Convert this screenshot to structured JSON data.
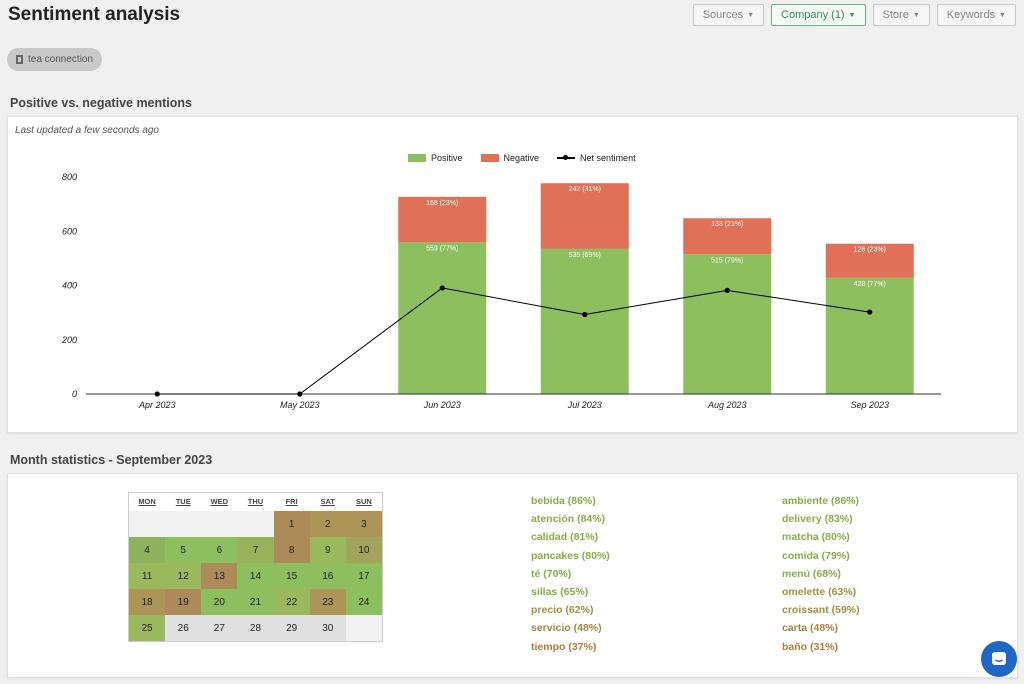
{
  "page": {
    "title": "Sentiment analysis"
  },
  "filters": [
    {
      "label": "Sources",
      "active": false
    },
    {
      "label": "Company (1)",
      "active": true
    },
    {
      "label": "Store",
      "active": false
    },
    {
      "label": "Keywords",
      "active": false
    }
  ],
  "chip": {
    "label": "tea connection",
    "icon": "building-icon"
  },
  "chart_section": {
    "title": "Positive vs. negative mentions",
    "updated": "Last updated a few seconds ago"
  },
  "chart_data": {
    "type": "bar",
    "stacked": true,
    "categories": [
      "Apr 2023",
      "May 2023",
      "Jun 2023",
      "Jul 2023",
      "Aug 2023",
      "Sep 2023"
    ],
    "series": [
      {
        "name": "Positive",
        "type": "bar",
        "color": "#8dbf5f",
        "values": [
          0,
          0,
          559,
          535,
          515,
          428
        ],
        "labels": [
          "",
          "",
          "559 (77%)",
          "535 (69%)",
          "515 (79%)",
          "428 (77%)"
        ]
      },
      {
        "name": "Negative",
        "type": "bar",
        "color": "#e07058",
        "values": [
          0,
          0,
          168,
          242,
          133,
          126
        ],
        "labels": [
          "",
          "",
          "168 (23%)",
          "242 (31%)",
          "133 (21%)",
          "126 (23%)"
        ]
      },
      {
        "name": "Net sentiment",
        "type": "line",
        "color": "#000000",
        "values": [
          0,
          0,
          391,
          293,
          382,
          302
        ]
      }
    ],
    "ylim": [
      0,
      800
    ],
    "yticks": [
      0,
      200,
      400,
      600,
      800
    ],
    "legend_position": "top"
  },
  "month_section": {
    "title": "Month statistics - September 2023"
  },
  "calendar": {
    "weekdays": [
      "MON",
      "TUE",
      "WED",
      "THU",
      "FRI",
      "SAT",
      "SUN"
    ],
    "days": [
      {
        "d": "",
        "c": "#f2f2f2"
      },
      {
        "d": "",
        "c": "#f2f2f2"
      },
      {
        "d": "",
        "c": "#f2f2f2"
      },
      {
        "d": "",
        "c": "#f2f2f2"
      },
      {
        "d": "1",
        "c": "#ad8b58"
      },
      {
        "d": "2",
        "c": "#ad9558"
      },
      {
        "d": "3",
        "c": "#ad9558"
      },
      {
        "d": "4",
        "c": "#8db35e"
      },
      {
        "d": "5",
        "c": "#8dbf5f"
      },
      {
        "d": "6",
        "c": "#8dbf5f"
      },
      {
        "d": "7",
        "c": "#99b35c"
      },
      {
        "d": "8",
        "c": "#ad8b58"
      },
      {
        "d": "9",
        "c": "#9ab95d"
      },
      {
        "d": "10",
        "c": "#a2a45b"
      },
      {
        "d": "11",
        "c": "#9ab95d"
      },
      {
        "d": "12",
        "c": "#9ab95d"
      },
      {
        "d": "13",
        "c": "#ad8b58"
      },
      {
        "d": "14",
        "c": "#8dbf5f"
      },
      {
        "d": "15",
        "c": "#8dbf5f"
      },
      {
        "d": "16",
        "c": "#8dbf5f"
      },
      {
        "d": "17",
        "c": "#8dbf5f"
      },
      {
        "d": "18",
        "c": "#ad9558"
      },
      {
        "d": "19",
        "c": "#ad8b58"
      },
      {
        "d": "20",
        "c": "#8dbf5f"
      },
      {
        "d": "21",
        "c": "#8dbf5f"
      },
      {
        "d": "22",
        "c": "#9ab95d"
      },
      {
        "d": "23",
        "c": "#ad9558"
      },
      {
        "d": "24",
        "c": "#8dbf5f"
      },
      {
        "d": "25",
        "c": "#9ab95d"
      },
      {
        "d": "26",
        "c": "#e0e0e0"
      },
      {
        "d": "27",
        "c": "#e0e0e0"
      },
      {
        "d": "28",
        "c": "#e0e0e0"
      },
      {
        "d": "29",
        "c": "#e0e0e0"
      },
      {
        "d": "30",
        "c": "#e0e0e0"
      },
      {
        "d": "",
        "c": "#f2f2f2"
      }
    ]
  },
  "keywords": {
    "left": [
      {
        "text": "bebida (86%)",
        "color": "#8aab48"
      },
      {
        "text": "atención (84%)",
        "color": "#8aab48"
      },
      {
        "text": "calidad (81%)",
        "color": "#8aab48"
      },
      {
        "text": "pancakes (80%)",
        "color": "#8aab48"
      },
      {
        "text": "té (70%)",
        "color": "#8aab48"
      },
      {
        "text": "sillas (65%)",
        "color": "#8aab48"
      },
      {
        "text": "precio (62%)",
        "color": "#9b9447"
      },
      {
        "text": "servicio (48%)",
        "color": "#a8863f"
      },
      {
        "text": "tiempo (37%)",
        "color": "#b07b36"
      }
    ],
    "right": [
      {
        "text": "ambiente (86%)",
        "color": "#8aab48"
      },
      {
        "text": "delivery (83%)",
        "color": "#8aab48"
      },
      {
        "text": "matcha (80%)",
        "color": "#8aab48"
      },
      {
        "text": "comida (79%)",
        "color": "#8aab48"
      },
      {
        "text": "menú (68%)",
        "color": "#8aab48"
      },
      {
        "text": "omelette (63%)",
        "color": "#9b9447"
      },
      {
        "text": "croissant (59%)",
        "color": "#9b9447"
      },
      {
        "text": "carta (48%)",
        "color": "#a8863f"
      },
      {
        "text": "baño (31%)",
        "color": "#b07b36"
      }
    ]
  },
  "chat": {
    "icon": "chat-icon"
  }
}
